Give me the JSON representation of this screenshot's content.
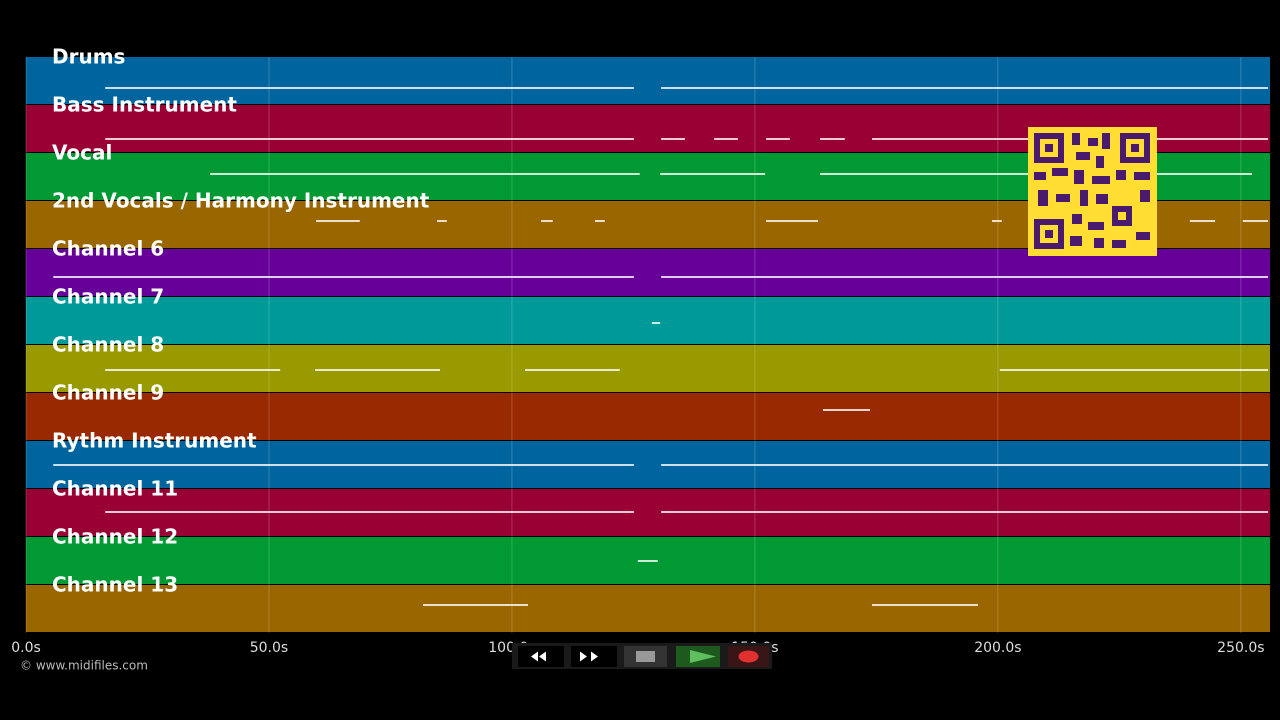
{
  "timeline": {
    "xlim": [
      0,
      256
    ],
    "ticks": [
      {
        "value": 0,
        "label": "0.0s"
      },
      {
        "value": 50,
        "label": "50.0s"
      },
      {
        "value": 100,
        "label": "100.0s"
      },
      {
        "value": 150,
        "label": "150.0s"
      },
      {
        "value": 200,
        "label": "200.0s"
      },
      {
        "value": 250,
        "label": "250.0s"
      }
    ],
    "tracks": [
      {
        "name": "Drums",
        "color": "#00659e",
        "notes": [
          [
            16.3,
            125.1
          ],
          [
            130.7,
            255.6
          ]
        ]
      },
      {
        "name": "Bass Instrument",
        "color": "#990033",
        "notes": [
          [
            16.3,
            125.1
          ],
          [
            130.7,
            135.6
          ],
          [
            141.6,
            146.5
          ],
          [
            152.3,
            157.2
          ],
          [
            163.4,
            168.5
          ],
          [
            174.1,
            255.6
          ]
        ]
      },
      {
        "name": "Vocal",
        "color": "#009933",
        "notes": [
          [
            37.9,
            126.3
          ],
          [
            130.5,
            152.1
          ],
          [
            163.4,
            252.3
          ]
        ]
      },
      {
        "name": "2nd Vocals / Harmony Instrument",
        "color": "#996600",
        "notes": [
          [
            59.7,
            68.7
          ],
          [
            84.6,
            86.6
          ],
          [
            106.0,
            108.4
          ],
          [
            117.1,
            119.1
          ],
          [
            152.3,
            163.0
          ],
          [
            198.8,
            200.8
          ],
          [
            239.5,
            244.7
          ],
          [
            250.4,
            255.6
          ]
        ]
      },
      {
        "name": "Channel 6",
        "color": "#660099",
        "notes": [
          [
            5.6,
            125.1
          ],
          [
            130.7,
            255.6
          ]
        ]
      },
      {
        "name": "Channel 7",
        "color": "#009999",
        "notes": [
          [
            128.8,
            130.5
          ]
        ]
      },
      {
        "name": "Channel 8",
        "color": "#999900",
        "notes": [
          [
            16.3,
            52.3
          ],
          [
            59.5,
            85.2
          ],
          [
            102.7,
            122.2
          ],
          [
            200.4,
            255.6
          ]
        ]
      },
      {
        "name": "Channel 9",
        "color": "#992900",
        "notes": [
          [
            164.0,
            173.7
          ]
        ]
      },
      {
        "name": "Rythm Instrument",
        "color": "#00659e",
        "notes": [
          [
            5.6,
            125.1
          ],
          [
            130.7,
            255.6
          ]
        ]
      },
      {
        "name": "Channel 11",
        "color": "#990033",
        "notes": [
          [
            16.3,
            125.1
          ],
          [
            130.7,
            255.6
          ]
        ]
      },
      {
        "name": "Channel 12",
        "color": "#009933",
        "notes": [
          [
            125.9,
            130.0
          ]
        ]
      },
      {
        "name": "Channel 13",
        "color": "#996600",
        "notes": [
          [
            81.7,
            103.3
          ],
          [
            174.1,
            195.9
          ]
        ]
      }
    ]
  },
  "footer": {
    "credit": "© www.midifiles.com"
  }
}
